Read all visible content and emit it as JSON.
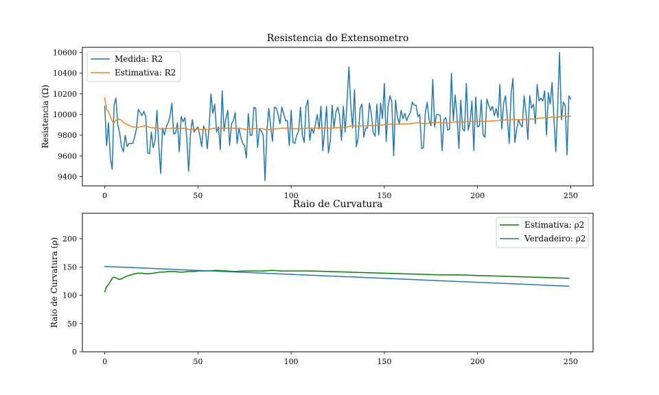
{
  "chart_data": [
    {
      "type": "line",
      "title": "Resistencia do Extensometro",
      "xlabel": "",
      "ylabel": "Resistencia (Ω)",
      "xlim": [
        -12,
        262
      ],
      "ylim": [
        9310,
        10650
      ],
      "xticks": [
        0,
        50,
        100,
        150,
        200,
        250
      ],
      "yticks": [
        9400,
        9600,
        9800,
        10000,
        10200,
        10400,
        10600
      ],
      "grid": false,
      "legend_position": "top-left",
      "colors": {
        "measured": "#1f77b4",
        "estimate": "#ff7f0e"
      },
      "series": [
        {
          "name": "Medida: R2",
          "color": "#1f77b4",
          "x_start": 0,
          "x_step": 1,
          "values": [
            10080,
            9700,
            9920,
            9580,
            9470,
            10090,
            10160,
            9900,
            9820,
            9690,
            9640,
            9800,
            9690,
            9720,
            9720,
            9720,
            9780,
            9860,
            10050,
            10020,
            9990,
            10030,
            9980,
            9630,
            9620,
            9830,
            9680,
            9750,
            10040,
            9700,
            9430,
            9870,
            9800,
            9880,
            9920,
            9980,
            10110,
            9810,
            9820,
            9920,
            9640,
            9980,
            9930,
            9970,
            9780,
            9450,
            9810,
            9950,
            9830,
            9860,
            9880,
            9800,
            9690,
            9890,
            9850,
            9670,
            9880,
            10200,
            10010,
            10100,
            9830,
            9880,
            9660,
            10230,
            9840,
            9960,
            10040,
            9700,
            9910,
            9940,
            10020,
            9720,
            9870,
            9780,
            9720,
            9700,
            9580,
            10010,
            9800,
            9800,
            10070,
            10060,
            9680,
            9860,
            9840,
            9800,
            9360,
            9840,
            10060,
            9890,
            9740,
            10070,
            10060,
            10000,
            9910,
            10070,
            10010,
            9940,
            9940,
            9700,
            10040,
            9730,
            9720,
            9800,
            9840,
            10070,
            9800,
            9730,
            10080,
            10140,
            9750,
            9870,
            9820,
            9900,
            10000,
            9860,
            10080,
            9650,
            9850,
            10080,
            9630,
            9740,
            10090,
            9870,
            10020,
            10070,
            9990,
            9750,
            10080,
            9830,
            10130,
            10460,
            10080,
            9870,
            10240,
            9690,
            9780,
            10060,
            10100,
            9780,
            9870,
            9870,
            10110,
            10010,
            9830,
            9790,
            10100,
            9800,
            10110,
            9960,
            10300,
            9740,
            10080,
            10180,
            10120,
            9600,
            10140,
            9980,
            9910,
            10040,
            9960,
            10010,
            9940,
            9990,
            10020,
            10120,
            10090,
            10090,
            9980,
            10000,
            9670,
            9680,
            10020,
            10120,
            9950,
            9890,
            10340,
            9880,
            10000,
            10000,
            9990,
            9650,
            9950,
            9970,
            9850,
            9860,
            10400,
            9940,
            10190,
            9980,
            9670,
            10140,
            9860,
            9840,
            10300,
            9850,
            9930,
            10130,
            9650,
            10170,
            9880,
            9890,
            10140,
            9800,
            9780,
            10150,
            10090,
            10040,
            10080,
            9990,
            10060,
            9970,
            10290,
            9860,
            10110,
            10180,
            9960,
            9720,
            10200,
            10350,
            9730,
            9860,
            9950,
            9900,
            9880,
            10180,
            10020,
            9760,
            10180,
            10060,
            10100,
            9910,
            10290,
            10130,
            10160,
            10130,
            10230,
            9800,
            10210,
            10100,
            10310,
            9950,
            9640,
            10080,
            10600,
            9950,
            10120,
            10090,
            9610,
            10180,
            10150
          ]
        },
        {
          "name": "Estimativa: R2",
          "color": "#ff7f0e",
          "x_start": 0,
          "x_step": 1,
          "values": [
            10160,
            10050,
            10030,
            9980,
            9935,
            9920,
            9945,
            9955,
            9955,
            9945,
            9925,
            9915,
            9905,
            9895,
            9888,
            9882,
            9878,
            9875,
            9876,
            9880,
            9885,
            9888,
            9890,
            9884,
            9876,
            9874,
            9872,
            9870,
            9872,
            9868,
            9860,
            9862,
            9862,
            9863,
            9864,
            9866,
            9870,
            9868,
            9867,
            9868,
            9864,
            9866,
            9866,
            9866,
            9864,
            9855,
            9855,
            9858,
            9857,
            9858,
            9859,
            9858,
            9855,
            9857,
            9857,
            9854,
            9855,
            9862,
            9864,
            9867,
            9865,
            9865,
            9862,
            9868,
            9867,
            9868,
            9869,
            9866,
            9866,
            9867,
            9868,
            9865,
            9865,
            9864,
            9862,
            9860,
            9856,
            9860,
            9859,
            9859,
            9863,
            9866,
            9863,
            9863,
            9863,
            9862,
            9852,
            9852,
            9856,
            9857,
            9855,
            9859,
            9862,
            9864,
            9865,
            9867,
            9868,
            9868,
            9868,
            9864,
            9867,
            9864,
            9862,
            9862,
            9862,
            9865,
            9865,
            9863,
            9866,
            9870,
            9868,
            9868,
            9867,
            9868,
            9869,
            9869,
            9872,
            9868,
            9868,
            9871,
            9867,
            9866,
            9869,
            9869,
            9871,
            9873,
            9874,
            9872,
            9874,
            9874,
            9877,
            9886,
            9888,
            9887,
            9892,
            9888,
            9886,
            9889,
            9891,
            9889,
            9889,
            9889,
            9893,
            9894,
            9893,
            9892,
            9895,
            9894,
            9897,
            9897,
            9904,
            9900,
            9903,
            9906,
            9908,
            9901,
            9905,
            9906,
            9906,
            9908,
            9909,
            9910,
            9910,
            9911,
            9912,
            9915,
            9917,
            9919,
            9919,
            9920,
            9915,
            9911,
            9913,
            9916,
            9917,
            9916,
            9923,
            9922,
            9923,
            9924,
            9924,
            9918,
            9919,
            9919,
            9918,
            9917,
            9926,
            9926,
            9930,
            9931,
            9926,
            9929,
            9928,
            9927,
            9933,
            9932,
            9932,
            9935,
            9930,
            9933,
            9932,
            9932,
            9935,
            9933,
            9931,
            9934,
            9936,
            9937,
            9939,
            9940,
            9941,
            9941,
            9946,
            9944,
            9946,
            9949,
            9949,
            9944,
            9948,
            9955,
            9951,
            9950,
            9950,
            9950,
            9949,
            9953,
            9954,
            9951,
            9955,
            9956,
            9958,
            9957,
            9962,
            9964,
            9966,
            9967,
            9971,
            9967,
            9971,
            9972,
            9977,
            9977,
            9970,
            9972,
            9982,
            9982,
            9984,
            9986,
            9978,
            9982,
            9985
          ]
        }
      ]
    },
    {
      "type": "line",
      "title": "Raio de Curvatura",
      "xlabel": "",
      "ylabel": "Raio de Curvatura (ρ)",
      "xlim": [
        -12,
        262
      ],
      "ylim": [
        0,
        245
      ],
      "xticks": [
        0,
        50,
        100,
        150,
        200,
        250
      ],
      "yticks": [
        0,
        50,
        100,
        150,
        200
      ],
      "grid": false,
      "legend_position": "top-right",
      "colors": {
        "estimate": "#008000",
        "true": "#1f77b4"
      },
      "series": [
        {
          "name": "Estimativa: ρ2",
          "color": "#008000",
          "x": [
            0,
            1,
            2,
            3,
            4,
            5,
            6,
            7,
            8,
            9,
            10,
            12,
            14,
            16,
            18,
            20,
            22,
            24,
            26,
            28,
            30,
            32,
            34,
            36,
            38,
            40,
            42,
            45,
            48,
            50,
            55,
            60,
            65,
            70,
            75,
            80,
            85,
            90,
            95,
            100,
            110,
            120,
            130,
            140,
            150,
            160,
            170,
            180,
            190,
            200,
            210,
            220,
            230,
            240,
            249
          ],
          "values": [
            106,
            115,
            119,
            124,
            130,
            132,
            131,
            129,
            128,
            129,
            131,
            134,
            136,
            138,
            139,
            139,
            138,
            138,
            139,
            140,
            141,
            141,
            142,
            142,
            142,
            141,
            141,
            142,
            142,
            143,
            143,
            144,
            143,
            142,
            143,
            143,
            143,
            144,
            143,
            143,
            143,
            142,
            141,
            140,
            139,
            138,
            137,
            136,
            136,
            135,
            134,
            133,
            132,
            131,
            130
          ]
        },
        {
          "name": "Verdadeiro: ρ2",
          "color": "#1f77b4",
          "x": [
            0,
            249
          ],
          "values": [
            151,
            116
          ]
        }
      ]
    }
  ]
}
